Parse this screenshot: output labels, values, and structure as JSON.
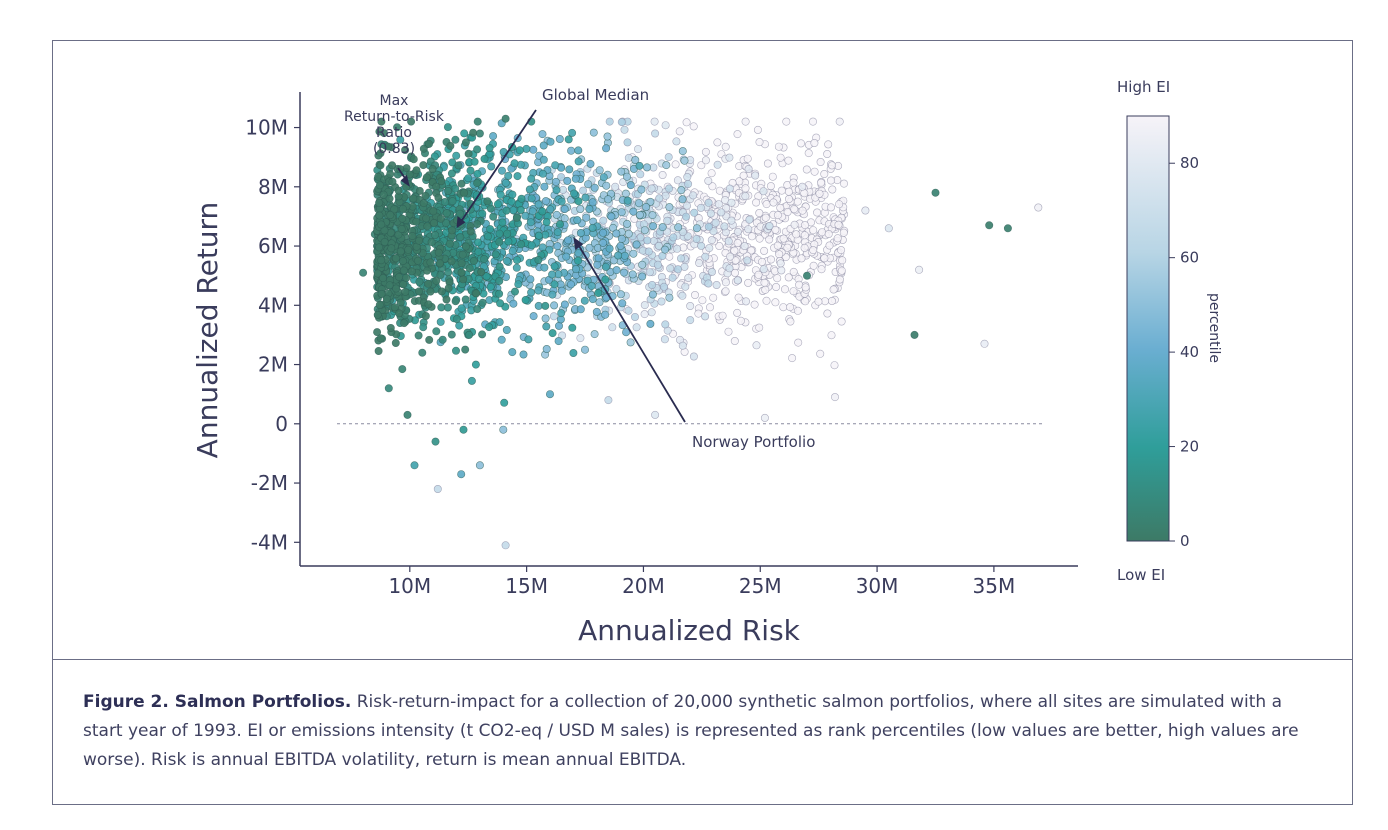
{
  "caption": {
    "title": "Figure 2. Salmon Portfolios.",
    "text": "Risk-return-impact for a collection of 20,000 synthetic salmon portfolios, where all sites are simulated with a start year of 1993. EI or emissions intensity (t CO2-eq / USD M sales) is represented as rank percentiles (low values are better, high values are worse). Risk is annual EBITDA volatility, return is mean annual EBITDA."
  },
  "chart_data": {
    "type": "scatter",
    "xlabel": "Annualized Risk",
    "ylabel": "Annualized Return",
    "xlim": [
      5.3,
      38.6
    ],
    "ylim": [
      -4.8,
      11.2
    ],
    "x_ticks": [
      10,
      15,
      20,
      25,
      30,
      35
    ],
    "x_tick_labels": [
      "10M",
      "15M",
      "20M",
      "25M",
      "30M",
      "35M"
    ],
    "y_ticks": [
      10,
      8,
      6,
      4,
      2,
      0,
      -2,
      -4
    ],
    "y_tick_labels": [
      "10M",
      "8M",
      "6M",
      "4M",
      "2M",
      "0",
      "-2M",
      "-4M"
    ],
    "units": "millions",
    "point_count": 20000,
    "zero_reference_line": true,
    "color_scale": {
      "title": "percentile",
      "top_label": "High EI",
      "bottom_label": "Low EI",
      "ticks": [
        0,
        20,
        40,
        60,
        80
      ],
      "range": [
        0,
        90
      ],
      "colors": [
        "#3d7a66",
        "#2f9e9a",
        "#6aaed1",
        "#b8d5e5",
        "#f6f3f8"
      ]
    },
    "annotations": [
      {
        "label": "Max\nReturn-to-Risk\nRatio\n(0.83)",
        "x": 10.0,
        "y": 8.0
      },
      {
        "label": "Global Median",
        "x": 12.0,
        "y": 6.6
      },
      {
        "label": "Norway Portfolio",
        "x": 17.0,
        "y": 6.3
      }
    ],
    "sample_points": [
      [
        8.5,
        6.4,
        5
      ],
      [
        9.2,
        5.8,
        8
      ],
      [
        10.0,
        8.0,
        4
      ],
      [
        10.5,
        7.2,
        12
      ],
      [
        11.2,
        6.8,
        10
      ],
      [
        12.4,
        9.5,
        3
      ],
      [
        13.0,
        9.8,
        6
      ],
      [
        14.1,
        10.3,
        4
      ],
      [
        15.2,
        10.2,
        15
      ],
      [
        16.8,
        9.6,
        25
      ],
      [
        18.4,
        9.3,
        45
      ],
      [
        20.5,
        9.8,
        70
      ],
      [
        22.0,
        8.9,
        78
      ],
      [
        24.5,
        8.6,
        82
      ],
      [
        26.8,
        8.0,
        85
      ],
      [
        28.4,
        10.2,
        88
      ],
      [
        29.5,
        7.2,
        84
      ],
      [
        30.5,
        6.6,
        80
      ],
      [
        31.8,
        5.2,
        86
      ],
      [
        32.5,
        7.8,
        5
      ],
      [
        34.8,
        6.7,
        3
      ],
      [
        35.6,
        6.6,
        4
      ],
      [
        36.9,
        7.3,
        88
      ],
      [
        34.6,
        2.7,
        85
      ],
      [
        31.6,
        3.0,
        2
      ],
      [
        28.2,
        0.9,
        88
      ],
      [
        25.2,
        0.2,
        86
      ],
      [
        20.5,
        0.3,
        80
      ],
      [
        18.5,
        0.8,
        70
      ],
      [
        16.0,
        1.0,
        40
      ],
      [
        14.0,
        -0.2,
        55
      ],
      [
        12.3,
        -0.2,
        20
      ],
      [
        11.1,
        -0.6,
        15
      ],
      [
        10.2,
        -1.4,
        30
      ],
      [
        11.2,
        -2.2,
        70
      ],
      [
        12.2,
        -1.7,
        40
      ],
      [
        13.0,
        -1.4,
        55
      ],
      [
        14.1,
        -4.1,
        70
      ],
      [
        8.0,
        5.1,
        6
      ],
      [
        9.1,
        1.2,
        10
      ],
      [
        9.9,
        0.3,
        5
      ],
      [
        12.5,
        3.0,
        18
      ],
      [
        15.5,
        4.5,
        35
      ],
      [
        19.0,
        5.5,
        60
      ],
      [
        23.0,
        6.5,
        75
      ],
      [
        27.0,
        5.0,
        5
      ],
      [
        22.0,
        3.5,
        72
      ],
      [
        17.5,
        2.5,
        55
      ],
      [
        13.5,
        6.0,
        22
      ],
      [
        16.5,
        7.5,
        30
      ]
    ]
  }
}
